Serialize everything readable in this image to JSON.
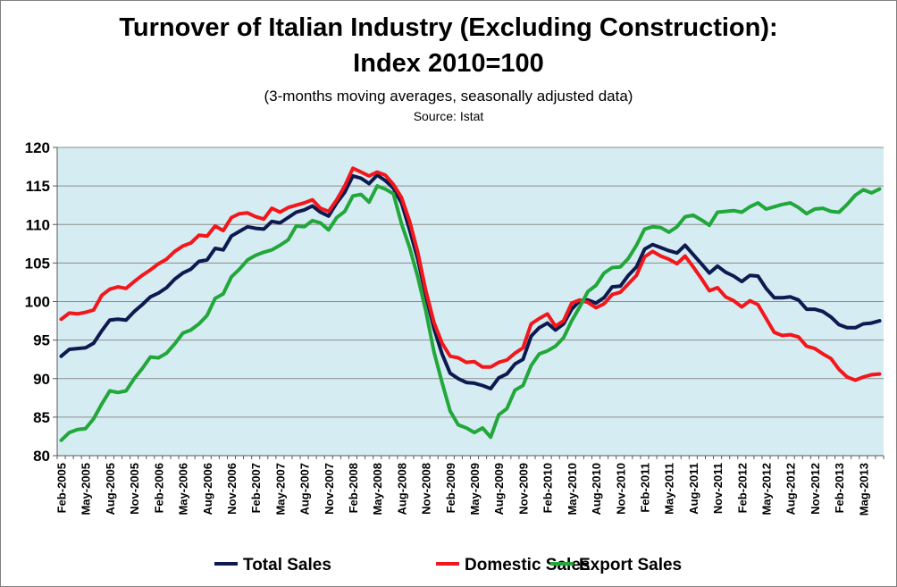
{
  "chart_data": {
    "type": "line",
    "title": "Turnover of Italian Industry (Excluding Construction):",
    "title_line2": "Index 2010=100",
    "subtitle": "(3-months moving averages, seasonally adjusted data)",
    "source": "Source: Istat",
    "ylim": [
      80,
      120
    ],
    "yticks": [
      80,
      85,
      90,
      95,
      100,
      105,
      110,
      115,
      120
    ],
    "x_start": "Feb-2005",
    "x_end": "Aug-2013",
    "x_tick_labels": [
      "Feb-2005",
      "May-2005",
      "Aug-2005",
      "Nov-2005",
      "Feb-2006",
      "May-2006",
      "Aug-2006",
      "Nov-2006",
      "Feb-2007",
      "May-2007",
      "Aug-2007",
      "Nov-2007",
      "Feb-2008",
      "May-2008",
      "Aug-2008",
      "Nov-2008",
      "Feb-2009",
      "May-2009",
      "Aug-2009",
      "Nov-2009",
      "Feb-2010",
      "May-2010",
      "Aug-2010",
      "Nov-2010",
      "Feb-2011",
      "May-2011",
      "Aug-2011",
      "Nov-2011",
      "Feb-2012",
      "May-2012",
      "Aug-2012",
      "Nov-2012",
      "Feb-2013",
      "Mag-2013"
    ],
    "grid": true,
    "plot_background": "#d6ecf3",
    "legend_position": "bottom",
    "series": [
      {
        "name": "Total Sales",
        "color": "#0d1a4f",
        "values": [
          92.9,
          93.8,
          93.9,
          94.0,
          94.6,
          96.2,
          97.6,
          97.7,
          97.6,
          98.7,
          99.6,
          100.6,
          101.1,
          101.8,
          102.9,
          103.7,
          104.2,
          105.2,
          105.4,
          106.9,
          106.7,
          108.5,
          109.1,
          109.7,
          109.5,
          109.4,
          110.4,
          110.2,
          110.9,
          111.6,
          111.9,
          112.4,
          111.6,
          111.1,
          112.8,
          114.2,
          116.3,
          116.0,
          115.3,
          116.4,
          115.7,
          114.7,
          112.8,
          109.3,
          105.5,
          100.8,
          96.5,
          93.2,
          90.7,
          90.0,
          89.5,
          89.4,
          89.1,
          88.7,
          90.1,
          90.6,
          91.9,
          92.5,
          95.5,
          96.6,
          97.2,
          96.3,
          97.1,
          99.0,
          100.1,
          100.2,
          99.8,
          100.5,
          101.9,
          102.0,
          103.4,
          104.5,
          106.8,
          107.4,
          107.0,
          106.6,
          106.3,
          107.3,
          106.1,
          104.9,
          103.7,
          104.6,
          103.8,
          103.3,
          102.6,
          103.4,
          103.3,
          101.7,
          100.5,
          100.5,
          100.6,
          100.2,
          99.0,
          99.0,
          98.7,
          98.0,
          97.0,
          96.6,
          96.6,
          97.1,
          97.2,
          97.5
        ]
      },
      {
        "name": "Domestic Sales",
        "color": "#f2171b",
        "values": [
          97.7,
          98.5,
          98.4,
          98.6,
          98.9,
          100.8,
          101.6,
          101.9,
          101.7,
          102.6,
          103.4,
          104.1,
          104.9,
          105.5,
          106.5,
          107.2,
          107.6,
          108.6,
          108.5,
          109.8,
          109.2,
          110.9,
          111.4,
          111.5,
          111.0,
          110.7,
          112.1,
          111.6,
          112.2,
          112.5,
          112.8,
          113.2,
          112.1,
          111.7,
          113.2,
          115.0,
          117.3,
          116.8,
          116.3,
          116.8,
          116.4,
          115.2,
          113.5,
          110.4,
          106.4,
          101.4,
          97.3,
          94.6,
          92.9,
          92.7,
          92.1,
          92.2,
          91.5,
          91.5,
          92.1,
          92.4,
          93.3,
          94.0,
          97.1,
          97.8,
          98.4,
          96.8,
          97.5,
          99.8,
          100.2,
          99.9,
          99.2,
          99.7,
          100.9,
          101.2,
          102.3,
          103.4,
          105.8,
          106.5,
          105.9,
          105.5,
          104.9,
          105.9,
          104.5,
          103.0,
          101.4,
          101.8,
          100.6,
          100.1,
          99.3,
          100.1,
          99.6,
          97.8,
          96.0,
          95.6,
          95.7,
          95.4,
          94.2,
          93.9,
          93.2,
          92.6,
          91.2,
          90.2,
          89.8,
          90.2,
          90.5,
          90.6
        ]
      },
      {
        "name": "Export Sales",
        "color": "#21a73a",
        "values": [
          82.0,
          83.0,
          83.4,
          83.5,
          84.8,
          86.7,
          88.4,
          88.2,
          88.4,
          90.0,
          91.3,
          92.8,
          92.7,
          93.3,
          94.5,
          95.9,
          96.3,
          97.1,
          98.2,
          100.4,
          101.0,
          103.2,
          104.2,
          105.4,
          106.0,
          106.4,
          106.7,
          107.3,
          108.0,
          109.8,
          109.7,
          110.5,
          110.2,
          109.3,
          110.9,
          111.7,
          113.7,
          113.9,
          112.9,
          115.0,
          114.6,
          114.0,
          110.1,
          107.0,
          103.2,
          98.8,
          93.5,
          89.5,
          85.8,
          84.0,
          83.6,
          83.0,
          83.6,
          82.4,
          85.3,
          86.1,
          88.5,
          89.1,
          91.7,
          93.2,
          93.6,
          94.2,
          95.3,
          97.5,
          99.3,
          101.3,
          102.1,
          103.7,
          104.4,
          104.5,
          105.6,
          107.3,
          109.4,
          109.7,
          109.6,
          109.0,
          109.7,
          111.0,
          111.2,
          110.6,
          109.9,
          111.6,
          111.7,
          111.8,
          111.6,
          112.3,
          112.8,
          112.0,
          112.3,
          112.6,
          112.8,
          112.2,
          111.4,
          112.0,
          112.1,
          111.7,
          111.6,
          112.6,
          113.8,
          114.5,
          114.1,
          114.6
        ]
      }
    ]
  }
}
